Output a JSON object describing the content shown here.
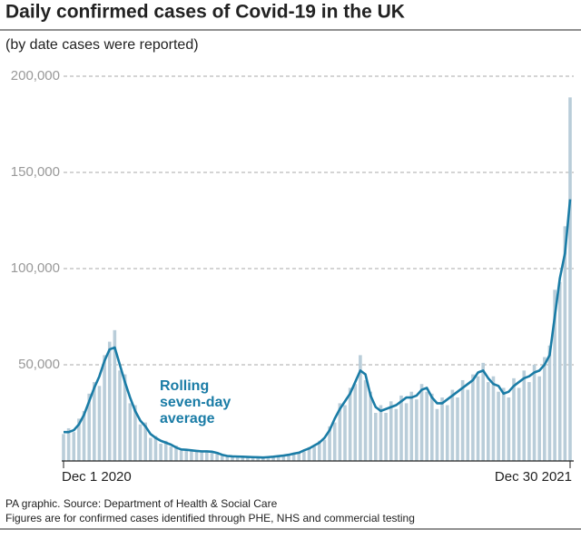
{
  "chart_data": {
    "type": "bar-line",
    "title": "Daily confirmed cases of Covid-19 in the UK",
    "subtitle": "(by date cases were reported)",
    "annotation": [
      "Rolling",
      "seven-day",
      "average"
    ],
    "source": "PA graphic. Source: Department of Health & Social Care",
    "note": "Figures are for confirmed cases identified through PHE, NHS and commercial testing",
    "categories": [
      "Dec 1 2020",
      null,
      null,
      null,
      null,
      null,
      null,
      null,
      null,
      null,
      null,
      null,
      null,
      null,
      null,
      null,
      null,
      null,
      null,
      null,
      null,
      null,
      null,
      null,
      null,
      null,
      null,
      null,
      null,
      null,
      null,
      null,
      null,
      null,
      null,
      null,
      null,
      null,
      null,
      null,
      null,
      null,
      null,
      null,
      null,
      null,
      null,
      null,
      null,
      null,
      null,
      null,
      null,
      null,
      null,
      null,
      null,
      null,
      null,
      null,
      null,
      null,
      null,
      null,
      null,
      null,
      null,
      null,
      null,
      null,
      null,
      null,
      null,
      null,
      null,
      null,
      null,
      null,
      null,
      null,
      null,
      null,
      null,
      null,
      null,
      null,
      null,
      null,
      null,
      null,
      null,
      null,
      null,
      null,
      null,
      null,
      null,
      null,
      null,
      "Dec 30 2021"
    ],
    "series": [
      {
        "kind": "bar",
        "color": "#b9cdd9",
        "values": [
          14000,
          17000,
          15000,
          22000,
          26000,
          35000,
          41000,
          39000,
          55000,
          62000,
          68000,
          47000,
          45000,
          30000,
          29000,
          19000,
          20000,
          12000,
          13000,
          9000,
          10500,
          7500,
          8000,
          5500,
          6200,
          5000,
          5800,
          4500,
          5500,
          4200,
          4600,
          2800,
          3000,
          2100,
          2600,
          2000,
          2400,
          1700,
          2100,
          1600,
          2300,
          2000,
          2800,
          2500,
          3600,
          3400,
          4800,
          5000,
          7200,
          7500,
          10500,
          11000,
          18000,
          20000,
          30000,
          29000,
          38000,
          40000,
          55000,
          42000,
          36000,
          25000,
          29000,
          25000,
          31000,
          27000,
          34000,
          30000,
          36000,
          32000,
          40000,
          36000,
          35000,
          27000,
          33000,
          29000,
          37000,
          33000,
          42000,
          37000,
          45000,
          44000,
          51000,
          41000,
          44000,
          36000,
          38000,
          33000,
          43000,
          38000,
          47000,
          41000,
          50000,
          44000,
          54000,
          60000,
          89000,
          93000,
          122000,
          189000
        ]
      },
      {
        "kind": "line",
        "color": "#1a7ca6",
        "values": [
          15000,
          15000,
          16000,
          19000,
          24000,
          31000,
          38000,
          44000,
          52000,
          58000,
          59000,
          50000,
          41000,
          33000,
          26000,
          21000,
          18000,
          14000,
          12000,
          10500,
          9500,
          8500,
          7000,
          6000,
          5800,
          5500,
          5200,
          5000,
          5000,
          4800,
          4200,
          3200,
          2600,
          2400,
          2300,
          2200,
          2100,
          2000,
          1900,
          1800,
          2000,
          2200,
          2500,
          2800,
          3200,
          3800,
          4300,
          5500,
          6500,
          8000,
          9500,
          12000,
          16000,
          22000,
          27000,
          31000,
          35000,
          41000,
          47000,
          45000,
          34000,
          28000,
          26000,
          27000,
          28000,
          29000,
          31000,
          33000,
          33000,
          34000,
          37000,
          38000,
          33000,
          30000,
          30000,
          32000,
          34000,
          36000,
          38000,
          40000,
          42000,
          46000,
          47000,
          43000,
          40000,
          39000,
          35000,
          36000,
          39000,
          41000,
          43000,
          44000,
          46000,
          47000,
          50000,
          55000,
          75000,
          95000,
          108000,
          136000
        ]
      }
    ],
    "ylim": [
      0,
      200000
    ],
    "yticks": [
      {
        "value": 50000,
        "label": "50,000"
      },
      {
        "value": 100000,
        "label": "100,000"
      },
      {
        "value": 150000,
        "label": "150,000"
      },
      {
        "value": 200000,
        "label": "200,000"
      }
    ],
    "grid": true
  }
}
